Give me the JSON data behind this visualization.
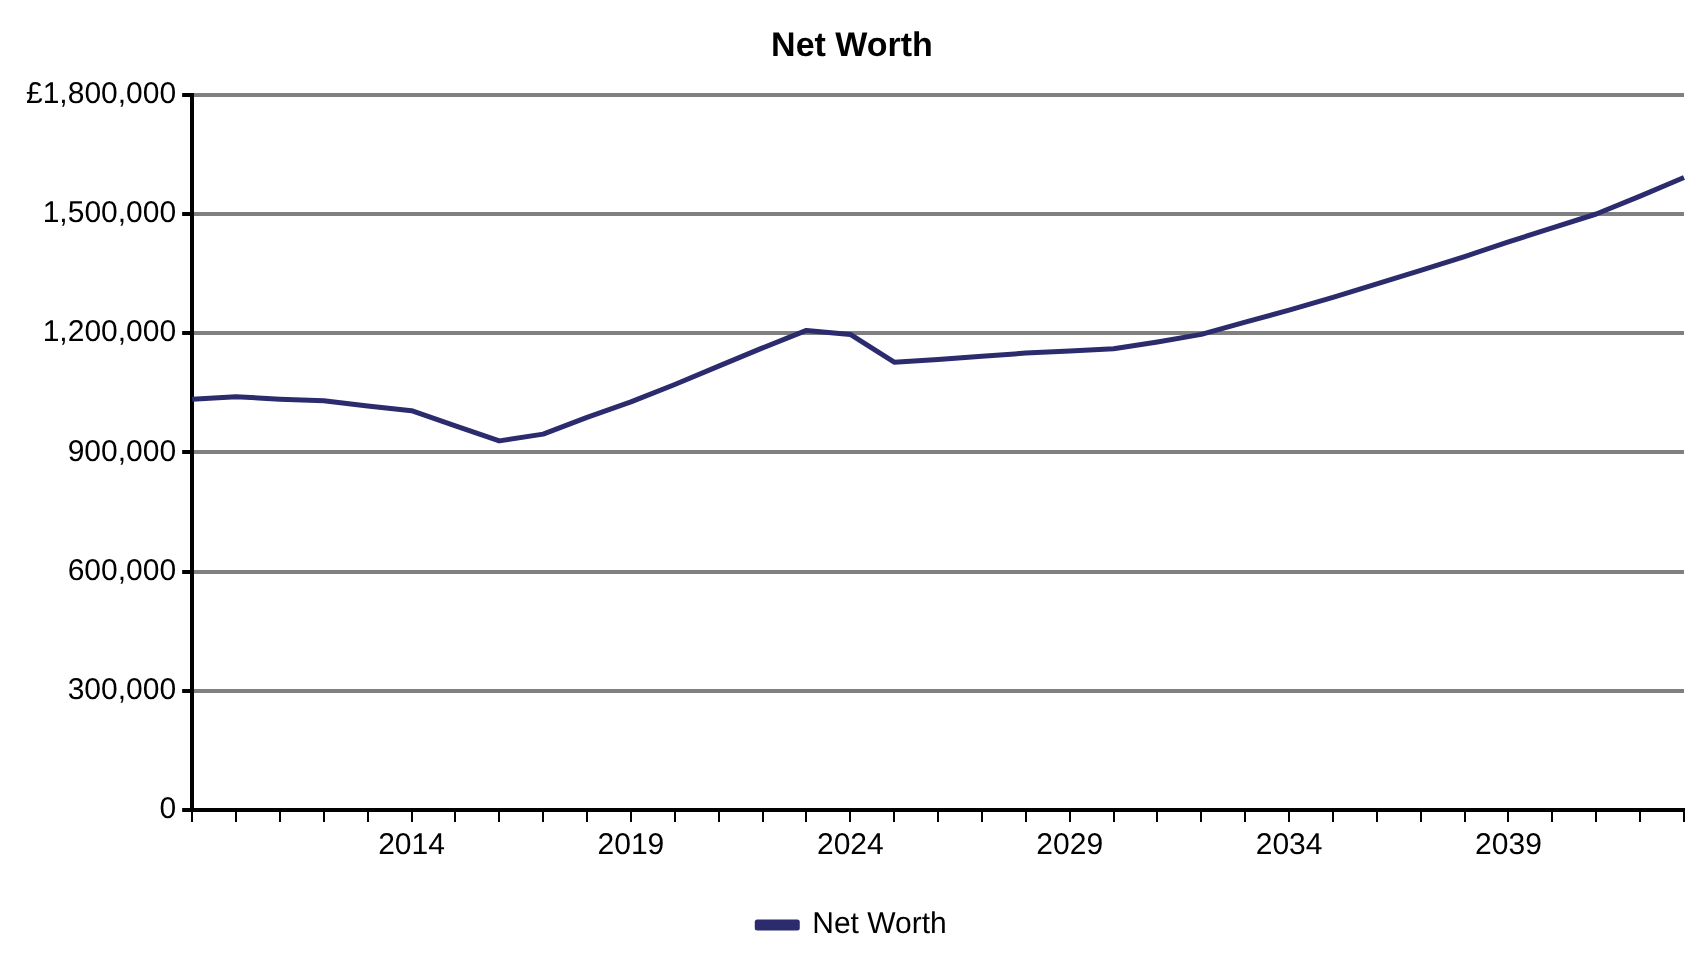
{
  "chart_data": {
    "type": "line",
    "title": "Net Worth",
    "categories": [
      null,
      null,
      null,
      null,
      null,
      "2014",
      null,
      null,
      null,
      null,
      "2019",
      null,
      null,
      null,
      null,
      "2024",
      null,
      null,
      null,
      null,
      "2029",
      null,
      null,
      null,
      null,
      "2034",
      null,
      null,
      null,
      null,
      "2039",
      null,
      null,
      null,
      null
    ],
    "series": [
      {
        "name": "Net Worth",
        "color": "#2b2b6e",
        "values": [
          1034000,
          1040000,
          1034000,
          1030000,
          1017000,
          1005000,
          967000,
          929000,
          946000,
          988000,
          1027000,
          1071000,
          1117000,
          1163000,
          1207000,
          1197000,
          1127000,
          1134000,
          1142000,
          1150000,
          1155000,
          1161000,
          1178000,
          1197000,
          1228000,
          1258000,
          1290000,
          1324000,
          1358000,
          1393000,
          1430000,
          1465000,
          1500000,
          1545000,
          1592000
        ]
      }
    ],
    "ylim": [
      0,
      1800000
    ],
    "yticks": [
      0,
      {
        "value": 300000,
        "label": "300,000"
      },
      {
        "value": 600000,
        "label": "600,000"
      },
      {
        "value": 900000,
        "label": "900,000"
      },
      {
        "value": 1200000,
        "label": "1,200,000"
      },
      {
        "value": 1500000,
        "label": "1,500,000"
      },
      {
        "value": 1800000,
        "label": "£1,800,000"
      }
    ],
    "grid": "y",
    "legend": "bottom",
    "marker": "none",
    "line_style": "solid"
  }
}
